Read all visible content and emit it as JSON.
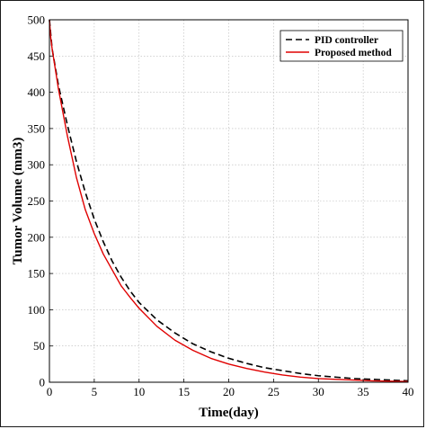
{
  "chart_data": {
    "type": "line",
    "title": "",
    "xlabel": "Time(day)",
    "ylabel": "Tumor Volume (mm3)",
    "xlim": [
      0,
      40
    ],
    "ylim": [
      0,
      500
    ],
    "xticks": [
      0,
      5,
      10,
      15,
      20,
      25,
      30,
      35,
      40
    ],
    "yticks": [
      0,
      50,
      100,
      150,
      200,
      250,
      300,
      350,
      400,
      450,
      500
    ],
    "grid": true,
    "legend_position": "top-right",
    "series": [
      {
        "name": "PID controller",
        "color": "#000000",
        "style": "dashed",
        "x": [
          0,
          0.3,
          1,
          2,
          3,
          4,
          5,
          6,
          7,
          8,
          9,
          10,
          12,
          14,
          16,
          18,
          20,
          22,
          24,
          26,
          28,
          30,
          32,
          34,
          36,
          38,
          40
        ],
        "y": [
          500,
          460,
          410,
          355,
          305,
          262,
          225,
          194,
          167,
          145,
          126,
          110,
          86,
          68,
          53,
          42,
          33,
          26,
          20,
          16,
          12,
          9,
          7,
          5,
          4,
          3,
          2
        ]
      },
      {
        "name": "Proposed method",
        "color": "#e00000",
        "style": "solid",
        "x": [
          0,
          0.15,
          0.3,
          1,
          2,
          3,
          4,
          5,
          6,
          7,
          8,
          8.5,
          9,
          10,
          12,
          14,
          16,
          18,
          20,
          22,
          24,
          26,
          28,
          30,
          32,
          34,
          36,
          38,
          40
        ],
        "y": [
          500,
          475,
          460,
          405,
          340,
          283,
          238,
          205,
          177,
          155,
          133,
          125,
          117,
          102,
          77,
          58,
          44,
          33,
          25,
          19,
          14,
          10,
          7,
          5,
          4,
          3,
          2,
          1.5,
          1
        ]
      }
    ]
  }
}
